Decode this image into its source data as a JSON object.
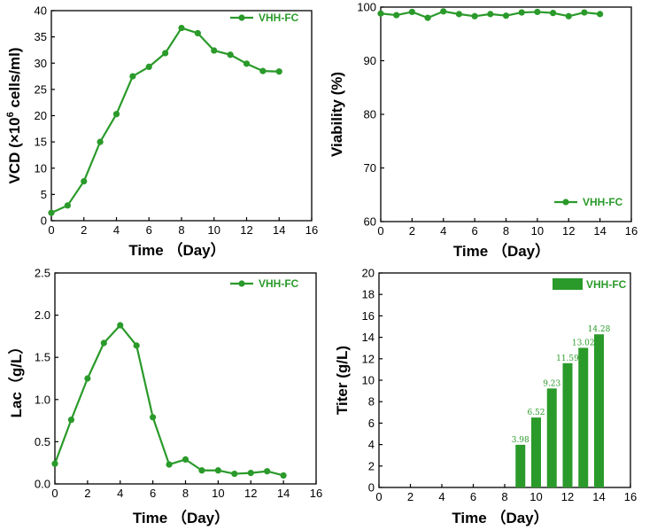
{
  "colors": {
    "series": "#2a9a2a",
    "axis": "#000000",
    "background": "#ffffff"
  },
  "chart_data": [
    {
      "id": "vcd",
      "type": "line",
      "legend": "top-right",
      "grid": false,
      "xlabel": "Time （Day）",
      "ylabel": "VCD (×10^6 cells/ml)",
      "ylabel_main": "VCD (×10",
      "ylabel_sup": "6",
      "ylabel_tail": " cells/ml)",
      "xlim": [
        0,
        16
      ],
      "ylim": [
        0,
        40
      ],
      "xticks": [
        0,
        2,
        4,
        6,
        8,
        10,
        12,
        14,
        16
      ],
      "yticks": [
        0,
        5,
        10,
        15,
        20,
        25,
        30,
        35,
        40
      ],
      "series": [
        {
          "name": "VHH-FC",
          "x": [
            0,
            1,
            2,
            3,
            4,
            5,
            6,
            7,
            8,
            9,
            10,
            11,
            12,
            13,
            14
          ],
          "y": [
            1.5,
            2.9,
            7.5,
            15.0,
            20.3,
            27.5,
            29.3,
            31.9,
            36.7,
            35.7,
            32.4,
            31.6,
            29.9,
            28.5,
            28.4
          ]
        }
      ]
    },
    {
      "id": "viability",
      "type": "line",
      "legend": "bottom-right",
      "grid": false,
      "xlabel": "Time （Day）",
      "ylabel": "Viability (%)",
      "xlim": [
        0,
        16
      ],
      "ylim": [
        60,
        100
      ],
      "xticks": [
        0,
        2,
        4,
        6,
        8,
        10,
        12,
        14,
        16
      ],
      "yticks": [
        60,
        70,
        80,
        90,
        100
      ],
      "series": [
        {
          "name": "VHH-FC",
          "x": [
            0,
            1,
            2,
            3,
            4,
            5,
            6,
            7,
            8,
            9,
            10,
            11,
            12,
            13,
            14
          ],
          "y": [
            98.8,
            98.5,
            99.1,
            98.0,
            99.2,
            98.7,
            98.3,
            98.7,
            98.4,
            99.0,
            99.1,
            98.9,
            98.3,
            99.0,
            98.7
          ]
        }
      ]
    },
    {
      "id": "lac",
      "type": "line",
      "legend": "top-right",
      "grid": false,
      "xlabel": "Time （Day）",
      "ylabel": "Lac（g/L）",
      "xlim": [
        0,
        16
      ],
      "ylim": [
        0,
        2.5
      ],
      "xticks": [
        0,
        2,
        4,
        6,
        8,
        10,
        12,
        14,
        16
      ],
      "yticks": [
        "0.0",
        "0.5",
        "1.0",
        "1.5",
        "2.0",
        "2.5"
      ],
      "series": [
        {
          "name": "VHH-FC",
          "x": [
            0,
            1,
            2,
            3,
            4,
            5,
            6,
            7,
            8,
            9,
            10,
            11,
            12,
            13,
            14
          ],
          "y": [
            0.24,
            0.76,
            1.25,
            1.67,
            1.88,
            1.64,
            0.79,
            0.23,
            0.29,
            0.16,
            0.16,
            0.12,
            0.13,
            0.15,
            0.1
          ]
        }
      ]
    },
    {
      "id": "titer",
      "type": "bar",
      "legend": "top-right",
      "grid": false,
      "xlabel": "Time （Day）",
      "ylabel": "Titer (g/L)",
      "xlim": [
        0,
        16
      ],
      "ylim": [
        0,
        20
      ],
      "xticks": [
        0,
        2,
        4,
        6,
        8,
        10,
        12,
        14,
        16
      ],
      "yticks": [
        0,
        2,
        4,
        6,
        8,
        10,
        12,
        14,
        16,
        18,
        20
      ],
      "series": [
        {
          "name": "VHH-FC",
          "x": [
            9,
            10,
            11,
            12,
            13,
            14
          ],
          "y": [
            3.98,
            6.52,
            9.23,
            11.59,
            13.02,
            14.28
          ],
          "labels": [
            "3.98",
            "6.52",
            "9.23",
            "11.59",
            "13.02",
            "14.28"
          ]
        }
      ]
    }
  ]
}
